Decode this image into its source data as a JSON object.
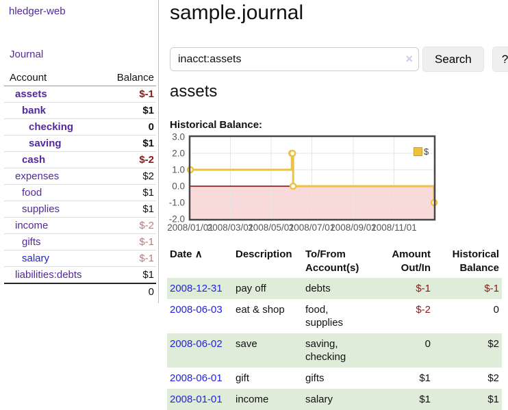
{
  "colors": {
    "purple": "#54279f",
    "blue": "#2222dd",
    "negative": "#8b1717",
    "negative_faded": "#b97c7c",
    "row_green": "#dfecda",
    "button_bg": "#efefef",
    "gold": "#edc240",
    "pink_region": "#f9dada",
    "zero_line": "#8b0000"
  },
  "sidebar": {
    "brand": "hledger-web",
    "journal_label": "Journal",
    "accounts_table": {
      "headers": [
        "Account",
        "Balance"
      ],
      "rows": [
        {
          "account": "assets",
          "balance": "$-1",
          "depth": 1,
          "bold": true,
          "balance_class": "neg",
          "link_class": ""
        },
        {
          "account": "bank",
          "balance": "$1",
          "depth": 2,
          "bold": true,
          "balance_class": "",
          "link_class": ""
        },
        {
          "account": "checking",
          "balance": "0",
          "depth": 3,
          "bold": true,
          "balance_class": "",
          "link_class": ""
        },
        {
          "account": "saving",
          "balance": "$1",
          "depth": 3,
          "bold": true,
          "balance_class": "",
          "link_class": ""
        },
        {
          "account": "cash",
          "balance": "$-2",
          "depth": 2,
          "bold": true,
          "balance_class": "neg",
          "link_class": ""
        },
        {
          "account": "expenses",
          "balance": "$2",
          "depth": 1,
          "bold": false,
          "balance_class": "",
          "link_class": ""
        },
        {
          "account": "food",
          "balance": "$1",
          "depth": 2,
          "bold": false,
          "balance_class": "",
          "link_class": ""
        },
        {
          "account": "supplies",
          "balance": "$1",
          "depth": 2,
          "bold": false,
          "balance_class": "",
          "link_class": ""
        },
        {
          "account": "income",
          "balance": "$-2",
          "depth": 1,
          "bold": false,
          "balance_class": "negfaded",
          "link_class": ""
        },
        {
          "account": "gifts",
          "balance": "$-1",
          "depth": 2,
          "bold": false,
          "balance_class": "negfaded",
          "link_class": ""
        },
        {
          "account": "salary",
          "balance": "$-1",
          "depth": 2,
          "bold": false,
          "balance_class": "negfaded",
          "link_class": "blue"
        },
        {
          "account": "liabilities:debts",
          "balance": "$1",
          "depth": 1,
          "bold": false,
          "balance_class": "",
          "link_class": ""
        }
      ],
      "total": "0"
    }
  },
  "main": {
    "title": "sample.journal",
    "search": {
      "value": "inacct:assets",
      "clear_icon": "×",
      "search_button": "Search",
      "help_button": "?"
    },
    "account_heading": "assets",
    "chart_heading": "Historical Balance:",
    "chart_data": {
      "type": "line",
      "title": "Historical Balance:",
      "step": true,
      "series": [
        {
          "name": "$",
          "points": [
            {
              "date": "2008-01-01",
              "value": 1
            },
            {
              "date": "2008-06-01",
              "value": 2
            },
            {
              "date": "2008-06-02",
              "value": 2
            },
            {
              "date": "2008-06-03",
              "value": 0
            },
            {
              "date": "2008-12-31",
              "value": -1
            }
          ]
        }
      ],
      "x_range": [
        "2008-01-01",
        "2008-12-31"
      ],
      "y_range": [
        -2,
        3
      ],
      "y_ticks": [
        {
          "v": 3,
          "label": "3.0"
        },
        {
          "v": 2,
          "label": "2.0"
        },
        {
          "v": 1,
          "label": "1.0"
        },
        {
          "v": 0,
          "label": "0.0"
        },
        {
          "v": -1,
          "label": "-1.0"
        },
        {
          "v": -2,
          "label": "-2.0"
        }
      ],
      "x_ticks": [
        {
          "date": "2008-01-01",
          "label": "2008/01/01"
        },
        {
          "date": "2008-03-01",
          "label": "2008/03/01"
        },
        {
          "date": "2008-05-01",
          "label": "2008/05/01"
        },
        {
          "date": "2008-07-01",
          "label": "2008/07/01"
        },
        {
          "date": "2008-09-01",
          "label": "2008/09/01"
        },
        {
          "date": "2008-11-01",
          "label": "2008/11/01"
        }
      ],
      "legend": {
        "label": "$",
        "position": "top-right"
      },
      "grid": true,
      "negative_region": true
    },
    "register_table": {
      "headers": [
        {
          "line1": "Date",
          "line2": "",
          "sort_icon": "∧"
        },
        {
          "line1": "Description",
          "line2": ""
        },
        {
          "line1": "To/From",
          "line2": "Account(s)"
        },
        {
          "line1": "Amount",
          "line2": "Out/In"
        },
        {
          "line1": "Historical",
          "line2": "Balance"
        }
      ],
      "rows": [
        {
          "date": "2008-12-31",
          "description": "pay off",
          "accounts": "debts",
          "amount": "$-1",
          "balance": "$-1",
          "amount_class": "neg",
          "balance_class": "neg",
          "shaded": true
        },
        {
          "date": "2008-06-03",
          "description": "eat & shop",
          "accounts": "food, supplies",
          "amount": "$-2",
          "balance": "0",
          "amount_class": "neg",
          "balance_class": "",
          "shaded": false
        },
        {
          "date": "2008-06-02",
          "description": "save",
          "accounts": "saving, checking",
          "amount": "0",
          "balance": "$2",
          "amount_class": "",
          "balance_class": "",
          "shaded": true
        },
        {
          "date": "2008-06-01",
          "description": "gift",
          "accounts": "gifts",
          "amount": "$1",
          "balance": "$2",
          "amount_class": "",
          "balance_class": "",
          "shaded": false
        },
        {
          "date": "2008-01-01",
          "description": "income",
          "accounts": "salary",
          "amount": "$1",
          "balance": "$1",
          "amount_class": "",
          "balance_class": "",
          "shaded": true
        }
      ]
    }
  }
}
